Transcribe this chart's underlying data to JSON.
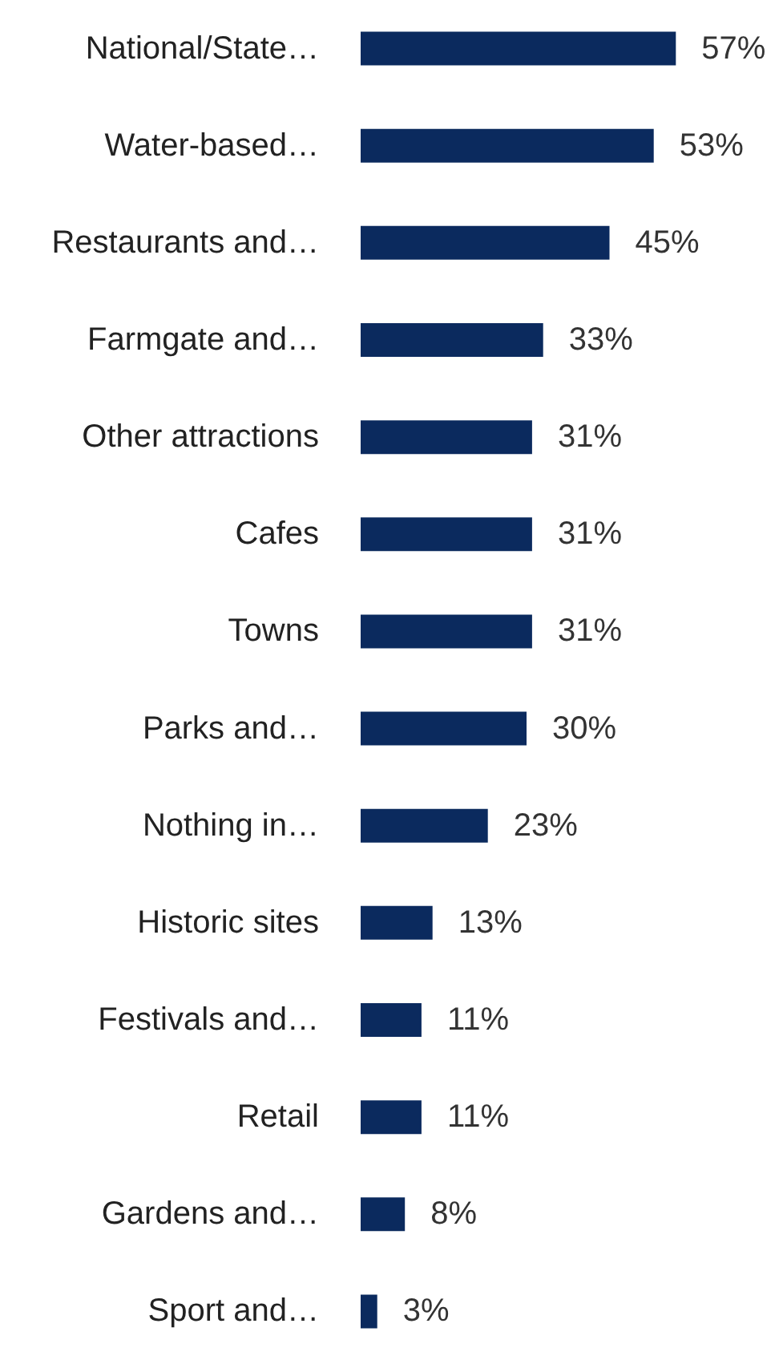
{
  "chart_data": {
    "type": "bar",
    "orientation": "horizontal",
    "categories": [
      "National/State…",
      "Water-based…",
      "Restaurants and…",
      "Farmgate and…",
      "Other attractions",
      "Cafes",
      "Towns",
      "Parks and…",
      "Nothing in…",
      "Historic sites",
      "Festivals and…",
      "Retail",
      "Gardens and…",
      "Sport and…"
    ],
    "values": [
      57,
      53,
      45,
      33,
      31,
      31,
      31,
      30,
      23,
      13,
      11,
      11,
      8,
      3
    ],
    "value_labels": [
      "57%",
      "53%",
      "45%",
      "33%",
      "31%",
      "31%",
      "31%",
      "30%",
      "23%",
      "13%",
      "11%",
      "11%",
      "8%",
      "3%"
    ],
    "color": "#0b2a5e"
  }
}
